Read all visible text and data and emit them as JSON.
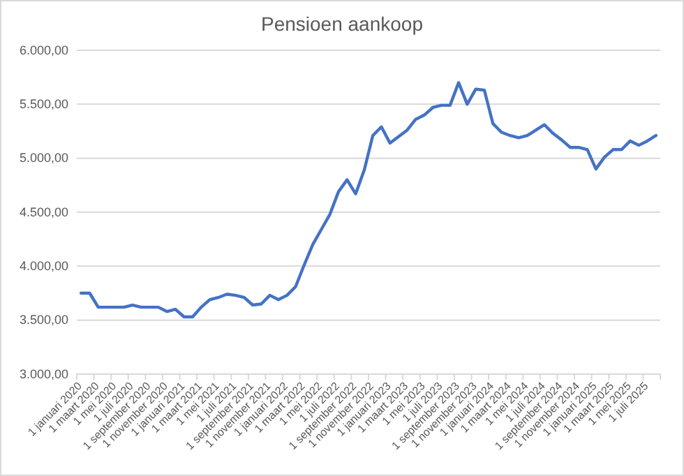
{
  "chart_data": {
    "type": "line",
    "title": "Pensioen aankoop",
    "categories": [
      "1 januari 2020",
      null,
      "1 maart 2020",
      null,
      "1 mei 2020",
      null,
      "1 juli 2020",
      null,
      "1 september 2020",
      null,
      "1 november 2020",
      null,
      "1 januari 2021",
      null,
      "1 maart 2021",
      null,
      "1 mei 2021",
      null,
      "1 juli 2021",
      null,
      "1 september 2021",
      null,
      "1 november 2021",
      null,
      "1 januari 2022",
      null,
      "1 maart 2022",
      null,
      "1 mei 2022",
      null,
      "1 juli 2022",
      null,
      "1 september 2022",
      null,
      "1 november 2022",
      null,
      "1 januari 2023",
      null,
      "1 maart 2023",
      null,
      "1 mei 2023",
      null,
      "1 juli 2023",
      null,
      "1 september 2023",
      null,
      "1 november 2023",
      null,
      "1 januari 2024",
      null,
      "1 maart 2024",
      null,
      "1 mei 2024",
      null,
      "1 juli 2024",
      null,
      "1 september 2024",
      null,
      "1 november 2024",
      null,
      "1 januari 2025",
      null,
      "1 maart 2025",
      null,
      "1 mei 2025",
      null,
      "1 juli 2025",
      null
    ],
    "series": [
      {
        "color": "#4472c4",
        "values": [
          3750,
          3750,
          3620,
          3620,
          3620,
          3620,
          3640,
          3620,
          3620,
          3620,
          3580,
          3600,
          3530,
          3530,
          3620,
          3690,
          3710,
          3740,
          3730,
          3710,
          3640,
          3650,
          3730,
          3690,
          3730,
          3810,
          4010,
          4200,
          4340,
          4480,
          4690,
          4800,
          4670,
          4890,
          5210,
          5290,
          5140,
          5200,
          5260,
          5360,
          5400,
          5470,
          5490,
          5490,
          5700,
          5500,
          5640,
          5630,
          5320,
          5240,
          5210,
          5190,
          5210,
          5260,
          5310,
          5230,
          5170,
          5100,
          5100,
          5080,
          4900,
          5010,
          5080,
          5080,
          5160,
          5120,
          5160,
          5210
        ]
      }
    ],
    "ylim": [
      3000,
      6000
    ],
    "yticks": [
      {
        "value": 3000,
        "label": "3.000,00"
      },
      {
        "value": 3500,
        "label": "3.500,00"
      },
      {
        "value": 4000,
        "label": "4.000,00"
      },
      {
        "value": 4500,
        "label": "4.500,00"
      },
      {
        "value": 5000,
        "label": "5.000,00"
      },
      {
        "value": 5500,
        "label": "5.500,00"
      },
      {
        "value": 6000,
        "label": "6.000,00"
      }
    ],
    "grid": "y",
    "line_style": "solid",
    "marker": "none"
  }
}
